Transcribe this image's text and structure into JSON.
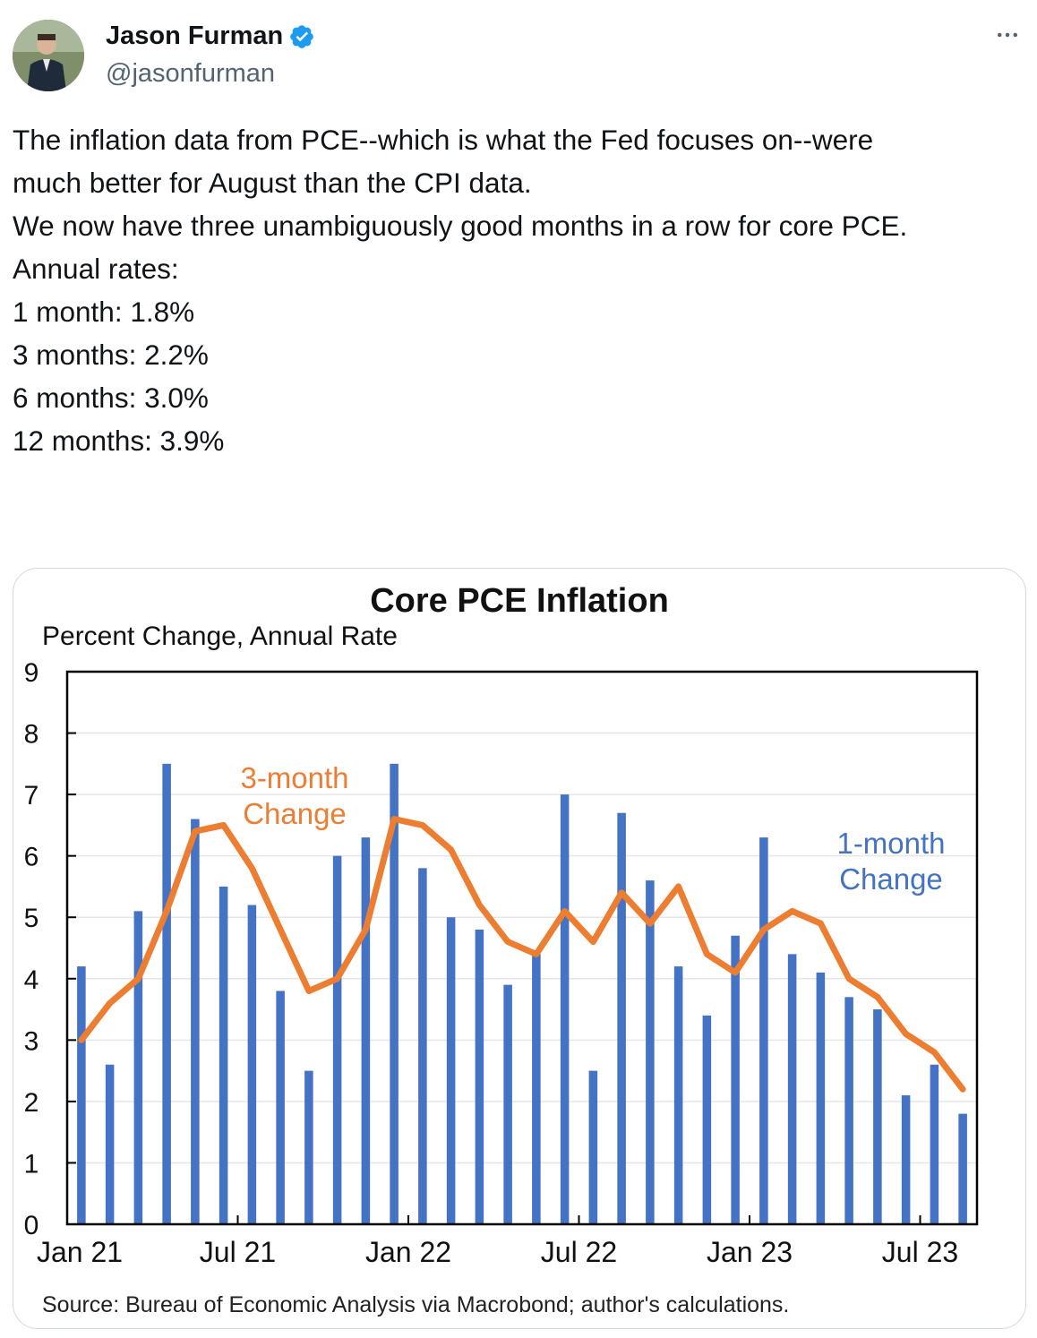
{
  "author": {
    "display_name": "Jason Furman",
    "handle": "@jasonfurman",
    "verified": true,
    "verified_color": "#1d9bf0"
  },
  "icons": {
    "more": "more-horizontal-icon",
    "verified": "verified-badge-icon"
  },
  "tweet": {
    "lines": [
      "The inflation data from PCE--which is what the Fed focuses on--were",
      "much better for August than the CPI data.",
      "",
      "We now have three unambiguously good months in a row for core PCE.",
      "",
      "Annual rates:",
      "1 month: 1.8%",
      "3 months: 2.2%",
      "6 months: 3.0%",
      "12 months: 3.9%"
    ]
  },
  "chart_data": {
    "type": "bar",
    "title": "Core PCE Inflation",
    "ylabel": "Percent Change, Annual Rate",
    "xlabel": "",
    "ylim": [
      0,
      9
    ],
    "yticks": [
      0,
      1,
      2,
      3,
      4,
      5,
      6,
      7,
      8,
      9
    ],
    "grid": true,
    "x_tick_labels": [
      {
        "label": "Jan 21",
        "index": 0
      },
      {
        "label": "Jul 21",
        "index": 6
      },
      {
        "label": "Jan 22",
        "index": 12
      },
      {
        "label": "Jul 22",
        "index": 18
      },
      {
        "label": "Jan 23",
        "index": 24
      },
      {
        "label": "Jul 23",
        "index": 30
      }
    ],
    "categories": [
      "Jan 21",
      "Feb 21",
      "Mar 21",
      "Apr 21",
      "May 21",
      "Jun 21",
      "Jul 21",
      "Aug 21",
      "Sep 21",
      "Oct 21",
      "Nov 21",
      "Dec 21",
      "Jan 22",
      "Feb 22",
      "Mar 22",
      "Apr 22",
      "May 22",
      "Jun 22",
      "Jul 22",
      "Aug 22",
      "Sep 22",
      "Oct 22",
      "Nov 22",
      "Dec 22",
      "Jan 23",
      "Feb 23",
      "Mar 23",
      "Apr 23",
      "May 23",
      "Jun 23",
      "Jul 23",
      "Aug 23"
    ],
    "series": [
      {
        "name": "1-month Change",
        "type": "bar",
        "color": "#4472c4",
        "values": [
          4.2,
          2.6,
          5.1,
          7.5,
          6.6,
          5.5,
          5.2,
          3.8,
          2.5,
          6.0,
          6.3,
          7.5,
          5.8,
          5.0,
          4.8,
          3.9,
          4.4,
          7.0,
          2.5,
          6.7,
          5.6,
          4.2,
          3.4,
          4.7,
          6.3,
          4.4,
          4.1,
          3.7,
          3.5,
          2.1,
          2.6,
          1.8
        ]
      },
      {
        "name": "3-month Change",
        "type": "line",
        "color": "#ed7d31",
        "values": [
          3.0,
          3.6,
          4.0,
          5.1,
          6.4,
          6.5,
          5.8,
          4.8,
          3.8,
          4.0,
          4.8,
          6.6,
          6.5,
          6.1,
          5.2,
          4.6,
          4.4,
          5.1,
          4.6,
          5.4,
          4.9,
          5.5,
          4.4,
          4.1,
          4.8,
          5.1,
          4.9,
          4.0,
          3.7,
          3.1,
          2.8,
          2.2
        ]
      }
    ],
    "annotations": [
      {
        "text_lines": [
          "3-month",
          "Change"
        ],
        "series": "3-month Change",
        "color": "#ed7d31"
      },
      {
        "text_lines": [
          "1-month",
          "Change"
        ],
        "series": "1-month Change",
        "color": "#4472c4"
      }
    ],
    "source": "Source: Bureau of Economic Analysis via Macrobond; author's calculations."
  }
}
